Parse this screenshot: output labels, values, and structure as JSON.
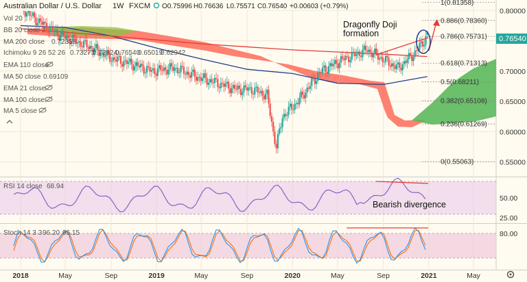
{
  "header": {
    "symbol": "Australian Dollar / U.S. Dollar",
    "interval": "1W",
    "exchange": "FXCM",
    "open": "O0.75996",
    "high": "H0.76636",
    "low": "L0.75571",
    "close": "C0.76540",
    "change": "+0.00603 (+0.79%)"
  },
  "indicator_labels": {
    "vol": "Vol 20",
    "bb": "BB 20 close 2",
    "ma200": "MA 200 close",
    "ma200_val": "0.72358",
    "ichimoku": "Ichimoku 9 26 52 26",
    "ichimoku_v1": "0.73273",
    "ichimoku_v2": "0.72924",
    "ichimoku_v3": "0.76540",
    "ichimoku_v4": "0.65019",
    "ichimoku_v5": "0.62942",
    "ema110": "EMA 110 close",
    "ma50": "MA 50 close",
    "ma50_val": "0.69109",
    "ema21": "EMA 21 close",
    "ma100": "MA 100 close",
    "ma5": "MA 5 close"
  },
  "annotations": {
    "doji_line1": "Dragonfly Doji",
    "doji_line2": "formation",
    "divergence": "Bearish divergence"
  },
  "price_tag": "0.76540",
  "rsi": {
    "label": "RSI 14 close",
    "value": "68.94"
  },
  "stoch": {
    "label": "Stoch 14 3 3",
    "k": "96.20",
    "d": "95.15"
  },
  "colors": {
    "background": "#fffbf0",
    "bull": "#26a69a",
    "bear": "#ef5350",
    "ma50": "#1f3d8c",
    "ma200": "#e53935",
    "cloud_bear": "#ff6b5a",
    "cloud_bull": "#5cb85c",
    "rsi_line": "#7e57c2",
    "stoch_k": "#2196f3",
    "stoch_d": "#ff6d00",
    "rsi_band": "#e1bee7",
    "stoch_band": "#f3d0e0"
  },
  "chart_data": {
    "type": "candlestick",
    "timeframe": "1W",
    "y_axis": {
      "ticks": [
        "0.80000",
        "0.75000",
        "0.70000",
        "0.65000",
        "0.60000",
        "0.55000"
      ],
      "ylim": [
        0.535,
        0.815
      ]
    },
    "x_axis": {
      "ticks": [
        "2018",
        "May",
        "Sep",
        "2019",
        "May",
        "Sep",
        "2020",
        "May",
        "Sep",
        "2021",
        "May"
      ]
    },
    "fib_levels": [
      {
        "label": "1(0.81358)",
        "value": 0.81358
      },
      {
        "label": "0.886(0.78360)",
        "value": 0.7836
      },
      {
        "label": "0.786(0.75731)",
        "value": 0.75731
      },
      {
        "label": "0.618(0.71313)",
        "value": 0.71313
      },
      {
        "label": "0.5(0.68211)",
        "value": 0.68211
      },
      {
        "label": "0.382(0.65108)",
        "value": 0.65108
      },
      {
        "label": "0.236(0.61269)",
        "value": 0.61269
      },
      {
        "label": "0(0.55063)",
        "value": 0.55063
      }
    ],
    "series": [
      {
        "name": "MA 50 close",
        "x": [
          "2018-01-01",
          "2018-05-01",
          "2018-09-01",
          "2019-01-01",
          "2019-05-01",
          "2019-09-01",
          "2020-01-01",
          "2020-05-01",
          "2020-09-01",
          "2020-12-28"
        ],
        "values": [
          0.775,
          0.772,
          0.758,
          0.738,
          0.72,
          0.703,
          0.696,
          0.68,
          0.678,
          0.691
        ]
      },
      {
        "name": "MA 200 close",
        "x": [
          "2018-01-01",
          "2018-09-01",
          "2019-05-01",
          "2020-01-01",
          "2020-09-01",
          "2020-12-28"
        ],
        "values": [
          0.77,
          0.758,
          0.745,
          0.735,
          0.728,
          0.724
        ]
      }
    ],
    "ohlc_last": {
      "open": 0.75996,
      "high": 0.76636,
      "low": 0.75571,
      "close": 0.7654
    },
    "rsi": {
      "name": "RSI 14 close",
      "last": 68.94,
      "ticks": [
        "50.00",
        "25.00"
      ]
    },
    "stoch": {
      "name": "Stoch 14 3 3",
      "k_last": 96.2,
      "d_last": 95.15,
      "ticks": [
        "80.00"
      ]
    }
  }
}
